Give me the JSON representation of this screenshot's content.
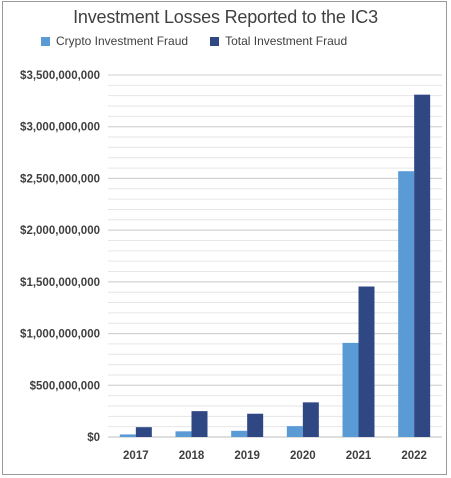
{
  "chart_data": {
    "type": "bar",
    "title": "Investment Losses Reported to the IC3",
    "categories": [
      "2017",
      "2018",
      "2019",
      "2020",
      "2021",
      "2022"
    ],
    "series": [
      {
        "name": "Crypto Investment Fraud",
        "color": "#5B9BD5",
        "values": [
          25000000,
          55000000,
          60000000,
          105000000,
          910000000,
          2570000000
        ]
      },
      {
        "name": "Total Investment Fraud",
        "color": "#2F4883",
        "values": [
          95000000,
          250000000,
          225000000,
          335000000,
          1455000000,
          3310000000
        ]
      }
    ],
    "ylim": [
      0,
      3500000000
    ],
    "yticks": [
      "$0",
      "$500,000,000",
      "$1,000,000,000",
      "$1,500,000,000",
      "$2,000,000,000",
      "$2,500,000,000",
      "$3,000,000,000",
      "$3,500,000,000"
    ],
    "legend_position": "top",
    "grid": true
  }
}
